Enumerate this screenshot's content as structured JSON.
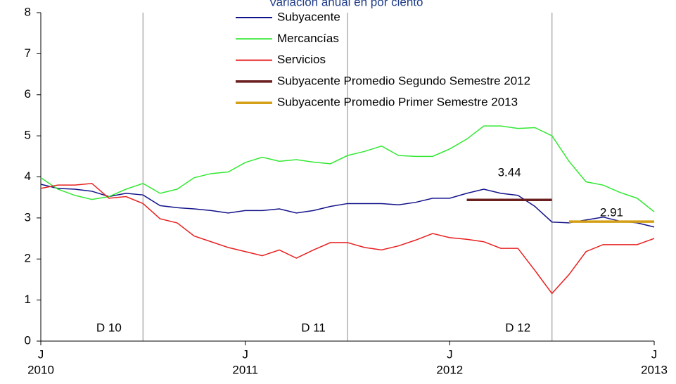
{
  "chart_data": {
    "type": "line",
    "title": "Variación anual en por ciento",
    "categories": [
      "J",
      null,
      null,
      null,
      null,
      null,
      null,
      null,
      null,
      null,
      null,
      null,
      "J",
      null,
      null,
      null,
      null,
      null,
      null,
      null,
      null,
      null,
      null,
      null,
      "J",
      null,
      null,
      null,
      null,
      null,
      null,
      null,
      null,
      null,
      null,
      null,
      "J"
    ],
    "years": [
      "2010",
      "2011",
      "2012",
      "2013"
    ],
    "ylim": [
      0,
      8
    ],
    "yticks": [
      0,
      1,
      2,
      3,
      4,
      5,
      6,
      7,
      8
    ],
    "dividers": [
      6,
      18,
      30
    ],
    "period_labels": [
      "D 10",
      "D 11",
      "D 12"
    ],
    "series": [
      {
        "name": "Subyacente",
        "color": "#12128a",
        "values": [
          3.82,
          3.72,
          3.7,
          3.65,
          3.52,
          3.6,
          3.56,
          3.3,
          3.25,
          3.22,
          3.18,
          3.12,
          3.18,
          3.18,
          3.22,
          3.12,
          3.18,
          3.28,
          3.35,
          3.35,
          3.35,
          3.32,
          3.38,
          3.48,
          3.48,
          3.6,
          3.7,
          3.6,
          3.55,
          3.28,
          2.9,
          2.88,
          2.95,
          3.02,
          2.92,
          2.88,
          2.78
        ]
      },
      {
        "name": "Mercancías",
        "color": "#33e833",
        "values": [
          3.98,
          3.7,
          3.55,
          3.45,
          3.52,
          3.7,
          3.84,
          3.6,
          3.7,
          3.98,
          4.08,
          4.12,
          4.35,
          4.48,
          4.38,
          4.42,
          4.36,
          4.32,
          4.52,
          4.62,
          4.75,
          4.52,
          4.5,
          4.5,
          4.68,
          4.92,
          5.24,
          5.24,
          5.18,
          5.2,
          5.0,
          4.38,
          3.88,
          3.8,
          3.62,
          3.48,
          3.15
        ]
      },
      {
        "name": "Servicios",
        "color": "#e82020",
        "values": [
          3.72,
          3.8,
          3.8,
          3.84,
          3.48,
          3.52,
          3.35,
          2.98,
          2.88,
          2.56,
          2.42,
          2.28,
          2.18,
          2.08,
          2.22,
          2.02,
          2.22,
          2.4,
          2.4,
          2.28,
          2.22,
          2.32,
          2.46,
          2.62,
          2.52,
          2.48,
          2.42,
          2.26,
          2.26,
          1.72,
          1.16,
          1.62,
          2.18,
          2.35,
          2.35,
          2.35,
          2.5
        ]
      },
      {
        "name": "Subyacente Promedio Segundo Semestre 2012",
        "color": "#6b1f1f",
        "width": 3.5,
        "values": [
          null,
          null,
          null,
          null,
          null,
          null,
          null,
          null,
          null,
          null,
          null,
          null,
          null,
          null,
          null,
          null,
          null,
          null,
          null,
          null,
          null,
          null,
          null,
          null,
          null,
          3.44,
          3.44,
          3.44,
          3.44,
          3.44,
          3.44,
          null,
          null,
          null,
          null,
          null,
          null
        ]
      },
      {
        "name": "Subyacente Promedio Primer Semestre 2013",
        "color": "#d4a017",
        "width": 3.5,
        "values": [
          null,
          null,
          null,
          null,
          null,
          null,
          null,
          null,
          null,
          null,
          null,
          null,
          null,
          null,
          null,
          null,
          null,
          null,
          null,
          null,
          null,
          null,
          null,
          null,
          null,
          null,
          null,
          null,
          null,
          null,
          null,
          2.91,
          2.91,
          2.91,
          2.91,
          2.91,
          2.91
        ]
      }
    ]
  }
}
